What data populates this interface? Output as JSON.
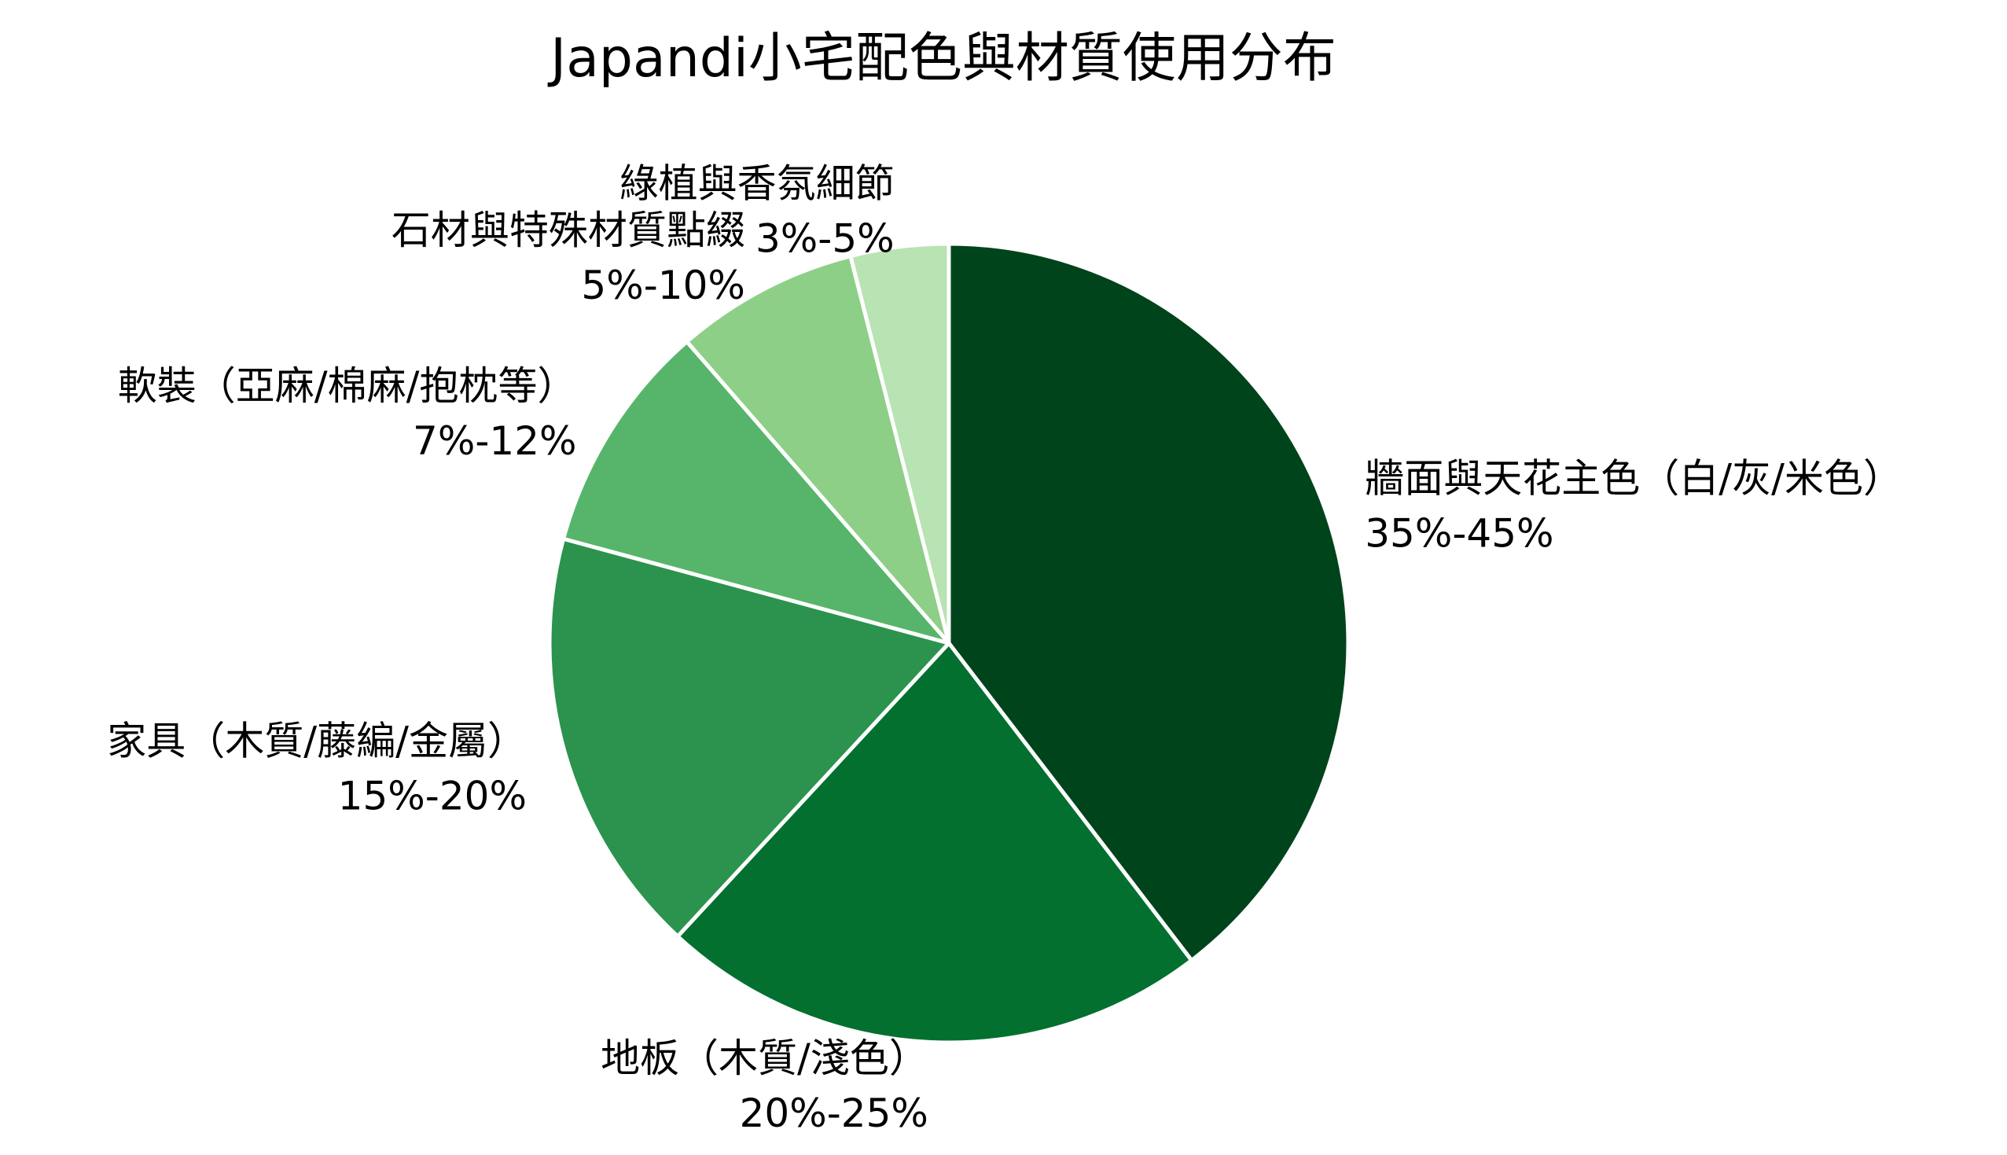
{
  "chart_data": {
    "type": "pie",
    "title": "Japandi小宅配色與材質使用分布",
    "unit": "%",
    "start_angle_deg": 90,
    "direction": "clockwise",
    "slices": [
      {
        "label": "牆面與天花主色（白/灰/米色）",
        "range_label": "35%-45%",
        "value": 40,
        "color": "#00441b"
      },
      {
        "label": "地板（木質/淺色）",
        "range_label": "20%-25%",
        "value": 22.5,
        "color": "#04702f"
      },
      {
        "label": "家具（木質/藤編/金屬）",
        "range_label": "15%-20%",
        "value": 17.5,
        "color": "#2b934d"
      },
      {
        "label": "軟裝（亞麻/棉麻/抱枕等）",
        "range_label": "7%-12%",
        "value": 9.5,
        "color": "#56b56a"
      },
      {
        "label": "石材與特殊材質點綴",
        "range_label": "5%-10%",
        "value": 7.5,
        "color": "#8ecf88"
      },
      {
        "label": "綠植與香氛細節",
        "range_label": "3%-5%",
        "value": 4,
        "color": "#b8e3b2"
      }
    ]
  }
}
